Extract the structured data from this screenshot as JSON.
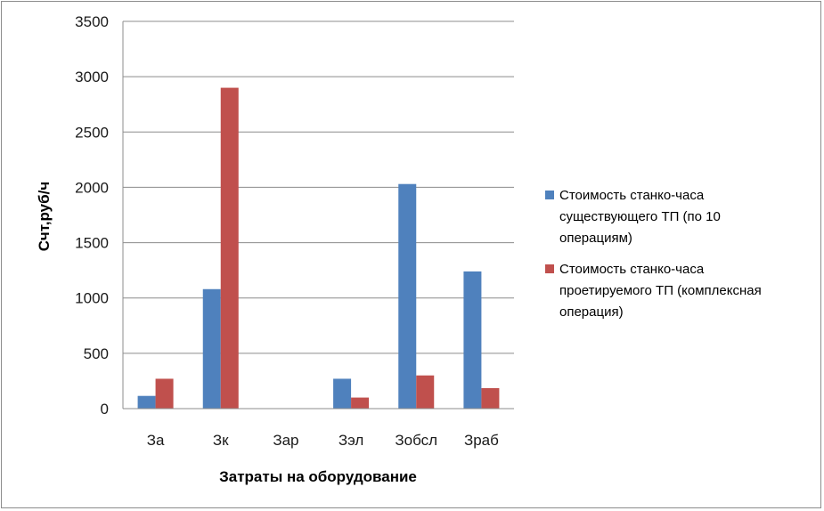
{
  "chart_data": {
    "type": "bar",
    "title": "",
    "xlabel": "Затраты на оборудование",
    "ylabel": "Счт,руб/ч",
    "categories": [
      "За",
      "Зк",
      "Зар",
      "Зэл",
      "Зобсл",
      "Зраб"
    ],
    "ylim": [
      0,
      3500
    ],
    "yticks": [
      0,
      500,
      1000,
      1500,
      2000,
      2500,
      3000,
      3500
    ],
    "grid": true,
    "legend_position": "right",
    "series": [
      {
        "name": "Стоимость станко-часа существующего ТП (по 10 операциям)",
        "legend_lines": [
          "Стоимость станко-часа",
          "существующего ТП (по 10",
          "операциям)"
        ],
        "color": "#4f81bd",
        "values": [
          115,
          1080,
          0,
          270,
          2030,
          1240
        ]
      },
      {
        "name": "Стоимость станко-часа проетируемого ТП (комплексная операция)",
        "legend_lines": [
          "Стоимость станко-часа",
          "проетируемого ТП (комплексная",
          "операция)"
        ],
        "color": "#c0504d",
        "values": [
          270,
          2900,
          0,
          100,
          300,
          185
        ]
      }
    ]
  }
}
